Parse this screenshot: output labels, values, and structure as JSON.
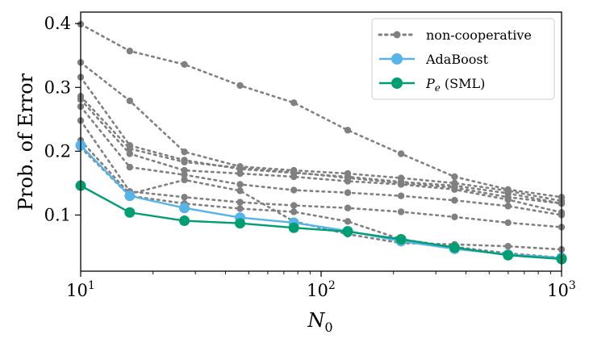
{
  "chart_data": {
    "type": "line",
    "x_scale": "log",
    "xlabel_base": "N",
    "xlabel_sub": "0",
    "ylabel": "Prob. of Error",
    "xlim": [
      10,
      1000
    ],
    "ylim": [
      0.012,
      0.418
    ],
    "x_ticks": [
      {
        "value": 10,
        "base": "10",
        "exp": "1"
      },
      {
        "value": 100,
        "base": "10",
        "exp": "2"
      },
      {
        "value": 1000,
        "base": "10",
        "exp": "3"
      }
    ],
    "y_ticks": [
      {
        "value": 0.1,
        "label": "0.1"
      },
      {
        "value": 0.2,
        "label": "0.2"
      },
      {
        "value": 0.3,
        "label": "0.3"
      },
      {
        "value": 0.4,
        "label": "0.4"
      }
    ],
    "x": [
      10,
      16,
      27,
      46,
      77,
      129,
      215,
      359,
      599,
      1000
    ],
    "noncoop_series": [
      {
        "values": [
          0.399,
          0.357,
          0.336,
          0.303,
          0.276,
          0.233,
          0.196,
          0.16,
          0.14,
          0.128
        ]
      },
      {
        "values": [
          0.339,
          0.279,
          0.199,
          0.176,
          0.17,
          0.165,
          0.158,
          0.15,
          0.138,
          0.122
        ]
      },
      {
        "values": [
          0.316,
          0.209,
          0.186,
          0.172,
          0.166,
          0.16,
          0.152,
          0.146,
          0.134,
          0.118
        ]
      },
      {
        "values": [
          0.286,
          0.204,
          0.183,
          0.174,
          0.167,
          0.158,
          0.15,
          0.143,
          0.128,
          0.118
        ]
      },
      {
        "values": [
          0.281,
          0.196,
          0.17,
          0.165,
          0.16,
          0.153,
          0.148,
          0.14,
          0.124,
          0.104
        ]
      },
      {
        "values": [
          0.27,
          0.175,
          0.163,
          0.148,
          0.139,
          0.135,
          0.13,
          0.123,
          0.114,
          0.1
        ]
      },
      {
        "values": [
          0.248,
          0.137,
          0.128,
          0.12,
          0.115,
          0.111,
          0.105,
          0.097,
          0.088,
          0.081
        ]
      },
      {
        "values": [
          0.217,
          0.133,
          0.155,
          0.138,
          0.09,
          0.07,
          0.056,
          0.054,
          0.051,
          0.046
        ]
      },
      {
        "values": [
          0.206,
          0.13,
          0.118,
          0.11,
          0.105,
          0.09,
          0.062,
          0.05,
          0.04,
          0.033
        ]
      }
    ],
    "series": [
      {
        "name": "AdaBoost",
        "color": "#56B4E9",
        "values": [
          0.209,
          0.13,
          0.111,
          0.096,
          0.088,
          0.075,
          0.059,
          0.047,
          0.038,
          0.033
        ]
      },
      {
        "name": "(SML)",
        "math": "P",
        "math_sub": "e",
        "color": "#009E73",
        "values": [
          0.146,
          0.104,
          0.091,
          0.087,
          0.08,
          0.074,
          0.062,
          0.049,
          0.037,
          0.031
        ]
      }
    ],
    "noncoop_color": "#808080",
    "legend": {
      "position": "top-right",
      "entries": [
        "non-cooperative",
        "AdaBoost",
        "P_e (SML)"
      ],
      "noncoop_label": "non-cooperative"
    }
  }
}
